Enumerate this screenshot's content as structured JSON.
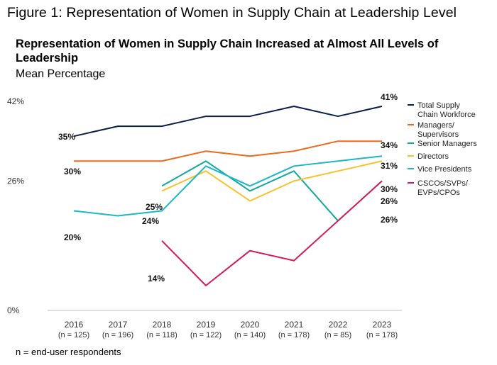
{
  "figure_title": "Figure 1: Representation of Women in Supply Chain at Leadership Level",
  "footnote": "n = end-user respondents",
  "chart_data": {
    "type": "line",
    "title": "Representation of Women in Supply Chain Increased at Almost All Levels of Leadership",
    "subtitle": "Mean Percentage",
    "categories": [
      "2016",
      "2017",
      "2018",
      "2019",
      "2020",
      "2021",
      "2022",
      "2023"
    ],
    "category_sublabels": [
      "(n = 125)",
      "(n = 196)",
      "(n = 118)",
      "(n = 122)",
      "(n = 140)",
      "(n = 178)",
      "(n = 85)",
      "(n = 178)"
    ],
    "y_ticks": [
      "42%",
      "26%",
      "0%"
    ],
    "y_tick_values": [
      42,
      26,
      0
    ],
    "ylim": [
      0,
      42
    ],
    "grid": false,
    "legend_position": "right",
    "series": [
      {
        "name": "Total Supply Chain Workforce",
        "color": "#0b1f4b",
        "values": [
          35,
          37,
          37,
          39,
          39,
          41,
          39,
          41
        ]
      },
      {
        "name": "Managers/ Supervisors",
        "color": "#ec6a1f",
        "values": [
          30,
          30,
          30,
          32,
          31,
          32,
          34,
          34
        ]
      },
      {
        "name": "Senior Managers",
        "color": "#13a89e",
        "values": [
          null,
          null,
          25,
          30,
          24,
          28,
          18,
          26
        ]
      },
      {
        "name": "Directors",
        "color": "#f7c22d",
        "values": [
          null,
          null,
          24,
          28,
          22,
          26,
          28,
          30
        ]
      },
      {
        "name": "Vice Presidents",
        "color": "#1ab8c9",
        "values": [
          20,
          19,
          20,
          29,
          25,
          29,
          30,
          31
        ]
      },
      {
        "name": "CSCOs/SVPs/ EVPs/CPOs",
        "color": "#d6195c",
        "values": [
          null,
          null,
          14,
          5,
          12,
          10,
          18,
          26
        ]
      }
    ],
    "data_labels": [
      {
        "text": "35%"
      },
      {
        "text": "30%"
      },
      {
        "text": "25%"
      },
      {
        "text": "24%"
      },
      {
        "text": "20%"
      },
      {
        "text": "14%"
      },
      {
        "text": "41%"
      },
      {
        "text": "34%"
      },
      {
        "text": "31%"
      },
      {
        "text": "30%"
      },
      {
        "text": "26%"
      },
      {
        "text": "26%"
      }
    ]
  }
}
